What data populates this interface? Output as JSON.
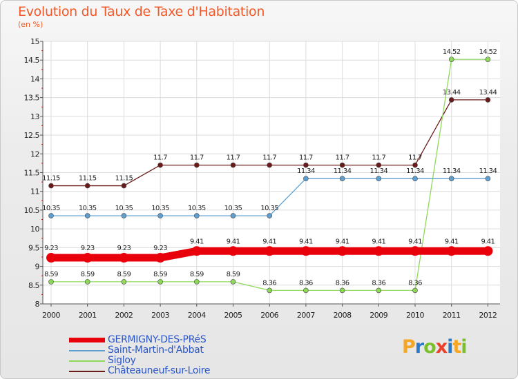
{
  "title": "Evolution du Taux de Taxe d'Habitation",
  "subtitle": "(en %)",
  "logo": {
    "text": "Proxiti",
    "letter_colors": [
      "#f5a623",
      "#2a78c8",
      "#7bbf2a",
      "#e8402a",
      "#2a78c8",
      "#f5a623",
      "#7bbf2a"
    ]
  },
  "chart_data": {
    "type": "line",
    "x": [
      "2000",
      "2001",
      "2002",
      "2003",
      "2004",
      "2005",
      "2006",
      "2007",
      "2008",
      "2009",
      "2010",
      "2011",
      "2012"
    ],
    "ylim": [
      8,
      15
    ],
    "yticks": [
      "8",
      "8.5",
      "9",
      "9.5",
      "10",
      "10.5",
      "11",
      "11.5",
      "12",
      "12.5",
      "13",
      "13.5",
      "14",
      "14.5",
      "15"
    ],
    "grid": true,
    "legend_position": "bottom-left",
    "series": [
      {
        "name": "GERMIGNY-DES-PRéS",
        "color": "#e8000b",
        "emphasis": "thick",
        "values": [
          9.23,
          9.23,
          9.23,
          9.23,
          9.41,
          9.41,
          9.41,
          9.41,
          9.41,
          9.41,
          9.41,
          9.41,
          9.41
        ],
        "labels": [
          "9.23",
          "9.23",
          "9.23",
          "9.23",
          "9.41",
          "9.41",
          "9.41",
          "9.41",
          "9.41",
          "9.41",
          "9.41",
          "9.41",
          "9.41"
        ]
      },
      {
        "name": "Saint-Martin-d'Abbat",
        "color": "#5f9fd0",
        "values": [
          10.35,
          10.35,
          10.35,
          10.35,
          10.35,
          10.35,
          10.35,
          11.34,
          11.34,
          11.34,
          11.34,
          11.34,
          11.34
        ],
        "labels": [
          "10.35",
          "10.35",
          "10.35",
          "10.35",
          "10.35",
          "10.35",
          "10.35",
          "11.34",
          "11.34",
          "11.34",
          "11.34",
          "11.34",
          "11.34"
        ]
      },
      {
        "name": "Sigloy",
        "color": "#8fd95a",
        "values": [
          8.59,
          8.59,
          8.59,
          8.59,
          8.59,
          8.59,
          8.36,
          8.36,
          8.36,
          8.36,
          8.36,
          14.52,
          14.52
        ],
        "labels": [
          "8.59",
          "8.59",
          "8.59",
          "8.59",
          "8.59",
          "8.59",
          "8.36",
          "8.36",
          "8.36",
          "8.36",
          "8.36",
          "14.52",
          "14.52"
        ]
      },
      {
        "name": "Châteauneuf-sur-Loire",
        "color": "#6b1a1a",
        "values": [
          11.15,
          11.15,
          11.15,
          11.7,
          11.7,
          11.7,
          11.7,
          11.7,
          11.7,
          11.7,
          11.7,
          13.44,
          13.44
        ],
        "labels": [
          "11.15",
          "11.15",
          "11.15",
          "11.7",
          "11.7",
          "11.7",
          "11.7",
          "11.7",
          "11.7",
          "11.7",
          "11.7",
          "13.44",
          "13.44"
        ]
      }
    ]
  }
}
